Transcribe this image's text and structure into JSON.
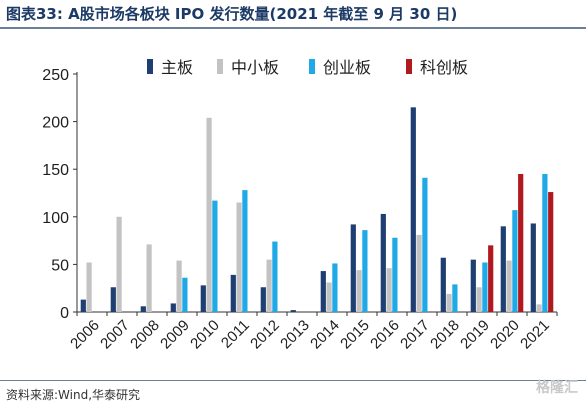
{
  "title": "图表33:   A股市场各板块 IPO 发行数量(2021 年截至 9 月 30 日)",
  "source": "资料来源:Wind,华泰研究",
  "watermark": "格隆汇",
  "chart_data": {
    "type": "bar",
    "categories": [
      "2006",
      "2007",
      "2008",
      "2009",
      "2010",
      "2011",
      "2012",
      "2013",
      "2014",
      "2015",
      "2016",
      "2017",
      "2018",
      "2019",
      "2020",
      "2021"
    ],
    "ylim": [
      0,
      250
    ],
    "yticks": [
      0,
      50,
      100,
      150,
      200,
      250
    ],
    "grid": false,
    "legend_position": "top",
    "series": [
      {
        "name": "主板",
        "color": "#1f3f73",
        "values": [
          13,
          26,
          6,
          9,
          28,
          39,
          26,
          2,
          43,
          92,
          103,
          215,
          57,
          55,
          90,
          93
        ]
      },
      {
        "name": "中小板",
        "color": "#c3c3c3",
        "values": [
          52,
          100,
          71,
          54,
          204,
          115,
          55,
          0,
          31,
          44,
          46,
          81,
          19,
          26,
          54,
          8
        ]
      },
      {
        "name": "创业板",
        "color": "#1fa9e6",
        "values": [
          0,
          0,
          0,
          36,
          117,
          128,
          74,
          0,
          51,
          86,
          78,
          141,
          29,
          52,
          107,
          145
        ]
      },
      {
        "name": "科创板",
        "color": "#b01a1f",
        "values": [
          0,
          0,
          0,
          0,
          0,
          0,
          0,
          0,
          0,
          0,
          0,
          0,
          0,
          70,
          145,
          126
        ]
      }
    ]
  }
}
